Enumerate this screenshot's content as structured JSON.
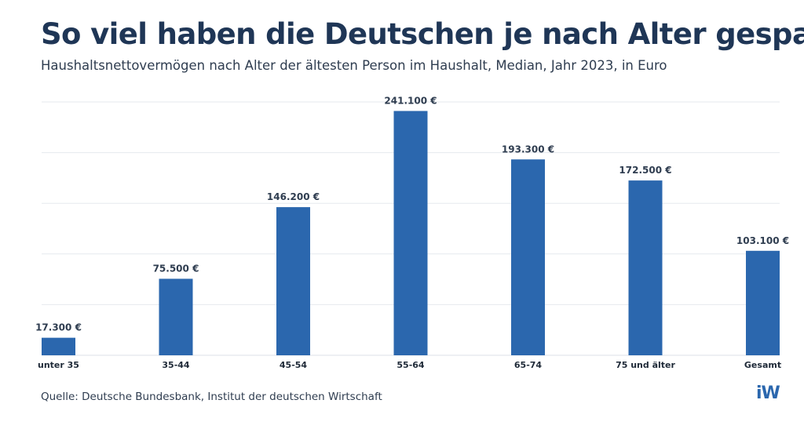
{
  "chart_data": {
    "type": "bar",
    "title": "So viel haben die Deutschen je nach Alter gespart",
    "subtitle": "Haushaltsnettovermögen nach Alter der ältesten Person im Haushalt, Median, Jahr 2023, in Euro",
    "categories": [
      "unter 35",
      "35-44",
      "45-54",
      "55-64",
      "65-74",
      "75 und älter",
      "Gesamt"
    ],
    "values": [
      17300,
      75500,
      146200,
      241100,
      193300,
      172500,
      103100
    ],
    "data_labels": [
      "17.300 €",
      "75.500 €",
      "146.200 €",
      "241.100 €",
      "193.300 €",
      "172.500 €",
      "103.100 €"
    ],
    "xlabel": "",
    "ylabel": "",
    "ylim": [
      0,
      250000
    ],
    "grid": true,
    "grid_step": 50000,
    "y_tick_labels": false,
    "bar_color": "#2b67ae",
    "source": "Quelle: Deutsche Bundesbank, Institut der deutschen Wirtschaft"
  },
  "logo": "iW"
}
